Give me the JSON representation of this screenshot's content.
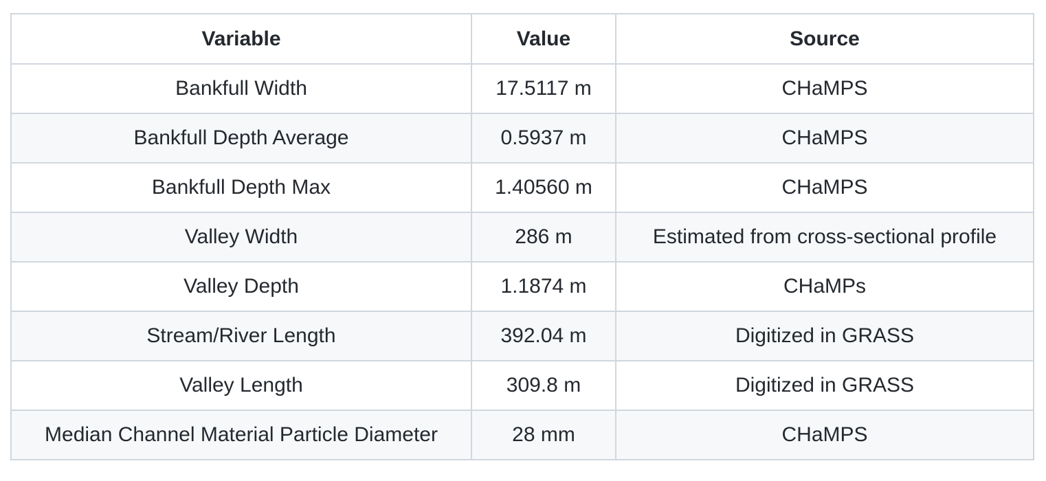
{
  "table": {
    "headers": [
      "Variable",
      "Value",
      "Source"
    ],
    "rows": [
      {
        "variable": "Bankfull Width",
        "value": "17.5117 m",
        "source": "CHaMPS"
      },
      {
        "variable": "Bankfull Depth Average",
        "value": "0.5937 m",
        "source": "CHaMPS"
      },
      {
        "variable": "Bankfull Depth Max",
        "value": "1.40560 m",
        "source": "CHaMPS"
      },
      {
        "variable": "Valley Width",
        "value": "286 m",
        "source": "Estimated from cross-sectional profile"
      },
      {
        "variable": "Valley Depth",
        "value": "1.1874 m",
        "source": "CHaMPs"
      },
      {
        "variable": "Stream/River Length",
        "value": "392.04 m",
        "source": "Digitized in GRASS"
      },
      {
        "variable": "Valley Length",
        "value": "309.8 m",
        "source": "Digitized in GRASS"
      },
      {
        "variable": "Median Channel Material Particle Diameter",
        "value": "28 mm",
        "source": "CHaMPS"
      }
    ]
  }
}
